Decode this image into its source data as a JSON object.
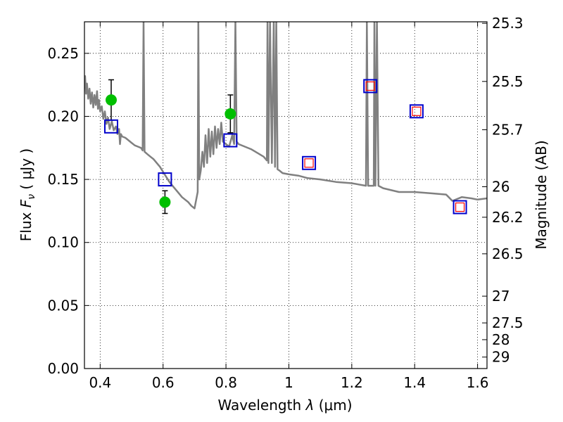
{
  "chart_data": {
    "type": "scatter",
    "title": "",
    "xlabel_text": "Wavelength",
    "xlabel_symbol": "λ",
    "xlabel_unit": "(μm)",
    "ylabel_text": "Flux",
    "ylabel_symbol": "F",
    "ylabel_sub": "ν",
    "ylabel_unit": "( μJy )",
    "y2label": "Magnitude (AB)",
    "xlim": [
      0.35,
      1.63
    ],
    "ylim": [
      0.0,
      0.275
    ],
    "grid": true,
    "x_ticks": [
      {
        "value": 0.4,
        "label": "0.4"
      },
      {
        "value": 0.6,
        "label": "0.6"
      },
      {
        "value": 0.8,
        "label": "0.8"
      },
      {
        "value": 1.0,
        "label": "1"
      },
      {
        "value": 1.2,
        "label": "1.2"
      },
      {
        "value": 1.4,
        "label": "1.4"
      },
      {
        "value": 1.6,
        "label": "1.6"
      }
    ],
    "y_ticks": [
      {
        "value": 0.0,
        "label": "0.00"
      },
      {
        "value": 0.05,
        "label": "0.05"
      },
      {
        "value": 0.1,
        "label": "0.10"
      },
      {
        "value": 0.15,
        "label": "0.15"
      },
      {
        "value": 0.2,
        "label": "0.20"
      },
      {
        "value": 0.25,
        "label": "0.25"
      }
    ],
    "y2_ticks": [
      {
        "flux": 0.2738,
        "label": "25.3"
      },
      {
        "flux": 0.2277,
        "label": "25.5"
      },
      {
        "flux": 0.1894,
        "label": "25.7"
      },
      {
        "flux": 0.1442,
        "label": "26"
      },
      {
        "flux": 0.12,
        "label": "26.2"
      },
      {
        "flux": 0.091,
        "label": "26.5"
      },
      {
        "flux": 0.0574,
        "label": "27"
      },
      {
        "flux": 0.0362,
        "label": "27.5"
      },
      {
        "flux": 0.0229,
        "label": "28"
      },
      {
        "flux": 0.0091,
        "label": "29"
      }
    ],
    "series": [
      {
        "kind": "line",
        "color": "#808080",
        "points": [
          [
            0.35,
            0.222
          ],
          [
            0.352,
            0.232
          ],
          [
            0.355,
            0.218
          ],
          [
            0.358,
            0.226
          ],
          [
            0.362,
            0.214
          ],
          [
            0.366,
            0.222
          ],
          [
            0.37,
            0.21
          ],
          [
            0.374,
            0.219
          ],
          [
            0.378,
            0.207
          ],
          [
            0.382,
            0.217
          ],
          [
            0.386,
            0.209
          ],
          [
            0.39,
            0.22
          ],
          [
            0.393,
            0.206
          ],
          [
            0.396,
            0.213
          ],
          [
            0.4,
            0.204
          ],
          [
            0.405,
            0.208
          ],
          [
            0.41,
            0.198
          ],
          [
            0.415,
            0.204
          ],
          [
            0.42,
            0.194
          ],
          [
            0.425,
            0.199
          ],
          [
            0.43,
            0.19
          ],
          [
            0.437,
            0.196
          ],
          [
            0.443,
            0.189
          ],
          [
            0.45,
            0.192
          ],
          [
            0.455,
            0.186
          ],
          [
            0.46,
            0.19
          ],
          [
            0.463,
            0.178
          ],
          [
            0.466,
            0.186
          ],
          [
            0.47,
            0.184
          ],
          [
            0.48,
            0.183
          ],
          [
            0.49,
            0.181
          ],
          [
            0.5,
            0.179
          ],
          [
            0.51,
            0.177
          ],
          [
            0.52,
            0.176
          ],
          [
            0.53,
            0.175
          ],
          [
            0.535,
            0.173
          ],
          [
            0.538,
            0.275
          ],
          [
            0.541,
            0.172
          ],
          [
            0.55,
            0.17
          ],
          [
            0.56,
            0.168
          ],
          [
            0.57,
            0.166
          ],
          [
            0.58,
            0.163
          ],
          [
            0.59,
            0.16
          ],
          [
            0.6,
            0.156
          ],
          [
            0.61,
            0.152
          ],
          [
            0.62,
            0.148
          ],
          [
            0.63,
            0.145
          ],
          [
            0.64,
            0.142
          ],
          [
            0.65,
            0.139
          ],
          [
            0.66,
            0.136
          ],
          [
            0.67,
            0.134
          ],
          [
            0.68,
            0.132
          ],
          [
            0.69,
            0.129
          ],
          [
            0.7,
            0.127
          ],
          [
            0.71,
            0.14
          ],
          [
            0.712,
            0.275
          ],
          [
            0.715,
            0.15
          ],
          [
            0.72,
            0.157
          ],
          [
            0.725,
            0.172
          ],
          [
            0.73,
            0.16
          ],
          [
            0.735,
            0.185
          ],
          [
            0.74,
            0.163
          ],
          [
            0.745,
            0.19
          ],
          [
            0.75,
            0.168
          ],
          [
            0.755,
            0.188
          ],
          [
            0.76,
            0.17
          ],
          [
            0.765,
            0.192
          ],
          [
            0.77,
            0.175
          ],
          [
            0.775,
            0.19
          ],
          [
            0.78,
            0.178
          ],
          [
            0.785,
            0.195
          ],
          [
            0.79,
            0.18
          ],
          [
            0.8,
            0.178
          ],
          [
            0.81,
            0.176
          ],
          [
            0.82,
            0.185
          ],
          [
            0.826,
            0.178
          ],
          [
            0.83,
            0.275
          ],
          [
            0.834,
            0.18
          ],
          [
            0.84,
            0.178
          ],
          [
            0.86,
            0.176
          ],
          [
            0.88,
            0.174
          ],
          [
            0.9,
            0.171
          ],
          [
            0.92,
            0.168
          ],
          [
            0.93,
            0.165
          ],
          [
            0.932,
            0.275
          ],
          [
            0.935,
            0.163
          ],
          [
            0.94,
            0.275
          ],
          [
            0.946,
            0.163
          ],
          [
            0.952,
            0.275
          ],
          [
            0.956,
            0.16
          ],
          [
            0.96,
            0.275
          ],
          [
            0.964,
            0.158
          ],
          [
            0.97,
            0.157
          ],
          [
            0.98,
            0.155
          ],
          [
            1.0,
            0.154
          ],
          [
            1.03,
            0.153
          ],
          [
            1.06,
            0.151
          ],
          [
            1.1,
            0.15
          ],
          [
            1.15,
            0.148
          ],
          [
            1.2,
            0.147
          ],
          [
            1.245,
            0.145
          ],
          [
            1.248,
            0.275
          ],
          [
            1.252,
            0.145
          ],
          [
            1.27,
            0.145
          ],
          [
            1.272,
            0.275
          ],
          [
            1.275,
            0.145
          ],
          [
            1.28,
            0.275
          ],
          [
            1.285,
            0.145
          ],
          [
            1.3,
            0.143
          ],
          [
            1.35,
            0.14
          ],
          [
            1.4,
            0.14
          ],
          [
            1.45,
            0.139
          ],
          [
            1.5,
            0.138
          ],
          [
            1.52,
            0.133
          ],
          [
            1.55,
            0.136
          ],
          [
            1.58,
            0.135
          ],
          [
            1.6,
            0.134
          ],
          [
            1.63,
            0.135
          ]
        ]
      },
      {
        "kind": "points-errorbar",
        "color": "#00bf00",
        "points": [
          {
            "x": 0.435,
            "y": 0.213,
            "yerr": 0.016
          },
          {
            "x": 0.606,
            "y": 0.132,
            "yerr": 0.009
          },
          {
            "x": 0.814,
            "y": 0.202,
            "yerr": 0.015
          }
        ]
      },
      {
        "kind": "open-squares",
        "color": "#0000cc",
        "points": [
          {
            "x": 0.435,
            "y": 0.192
          },
          {
            "x": 0.606,
            "y": 0.15
          },
          {
            "x": 0.814,
            "y": 0.181
          },
          {
            "x": 1.064,
            "y": 0.163
          },
          {
            "x": 1.259,
            "y": 0.224
          },
          {
            "x": 1.406,
            "y": 0.204
          },
          {
            "x": 1.544,
            "y": 0.128
          }
        ]
      },
      {
        "kind": "open-squares-small",
        "color": "#ff0000",
        "points": [
          {
            "x": 1.064,
            "y": 0.163
          },
          {
            "x": 1.259,
            "y": 0.224
          },
          {
            "x": 1.406,
            "y": 0.204
          },
          {
            "x": 1.544,
            "y": 0.128
          }
        ]
      }
    ]
  }
}
